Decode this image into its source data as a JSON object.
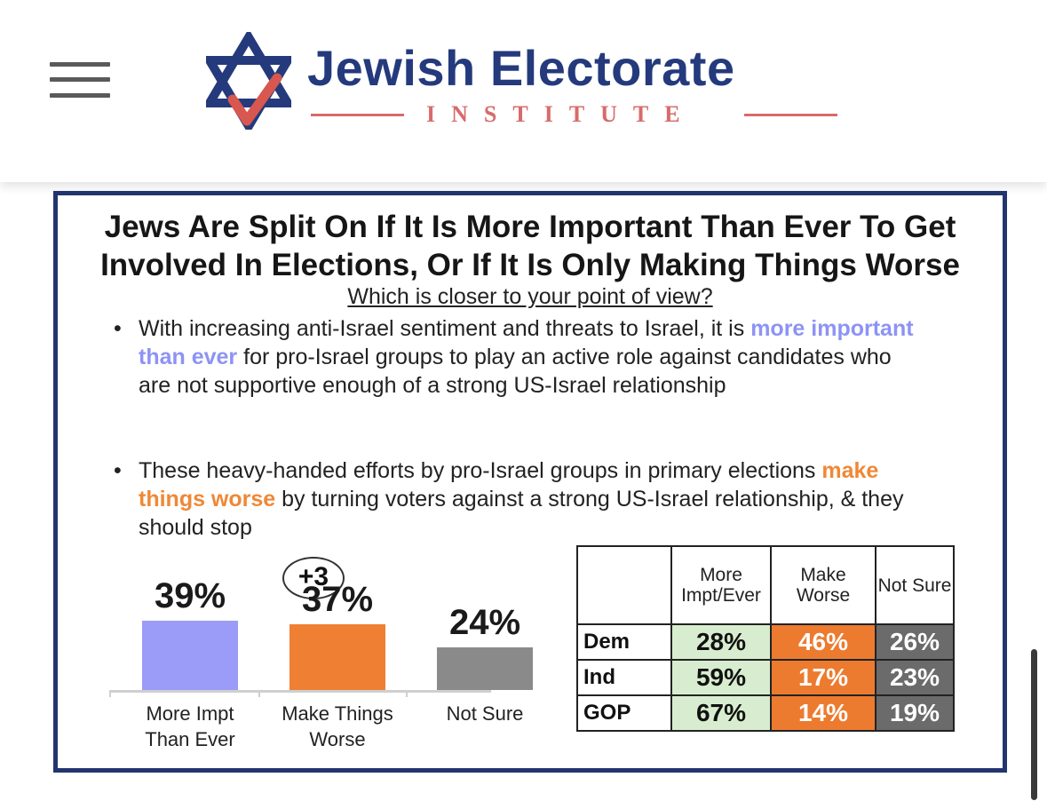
{
  "header": {
    "brand_name": "Jewish Electorate",
    "brand_sub": "INSTITUTE",
    "icons": [
      "menu-icon",
      "star-of-david-checkmark-logo"
    ],
    "colors": {
      "navy": "#243a7c",
      "coral": "#d86b6b"
    }
  },
  "graphic": {
    "title_line1": "Jews Are Split On If It Is More Important Than Ever To Get",
    "title_line2": "Involved In Elections, Or If It Is Only Making Things Worse",
    "question": "Which is closer to your point of view?",
    "bullet1": {
      "pre": "With increasing anti-Israel sentiment and threats to Israel, it is ",
      "highlight": "more important than ever",
      "post": " for pro-Israel groups to play an active role against candidates who are not supportive enough of a strong US-Israel relationship"
    },
    "bullet2": {
      "pre": "These heavy-handed efforts by pro-Israel groups in primary elections ",
      "highlight": "make things worse",
      "post": " by turning voters against a strong US-Israel relationship, & they should stop"
    },
    "difference_label": "+3"
  },
  "chart_data": [
    {
      "type": "bar",
      "categories": [
        "More Impt Than Ever",
        "Make Things Worse",
        "Not Sure"
      ],
      "values": [
        39,
        37,
        24
      ],
      "value_labels": [
        "39%",
        "37%",
        "24%"
      ],
      "colors": [
        "#9a9cf7",
        "#ef7f33",
        "#8a8a8a"
      ],
      "ylim": [
        0,
        100
      ]
    },
    {
      "type": "table",
      "columns": [
        "More Impt/Ever",
        "Make Worse",
        "Not Sure"
      ],
      "rows": [
        {
          "label": "Dem",
          "values": [
            "28%",
            "46%",
            "26%"
          ]
        },
        {
          "label": "Ind",
          "values": [
            "59%",
            "17%",
            "23%"
          ]
        },
        {
          "label": "GOP",
          "values": [
            "67%",
            "14%",
            "19%"
          ]
        }
      ],
      "colors": [
        "#d8edcf",
        "#ec7b2f",
        "#6b6b6b"
      ]
    }
  ]
}
